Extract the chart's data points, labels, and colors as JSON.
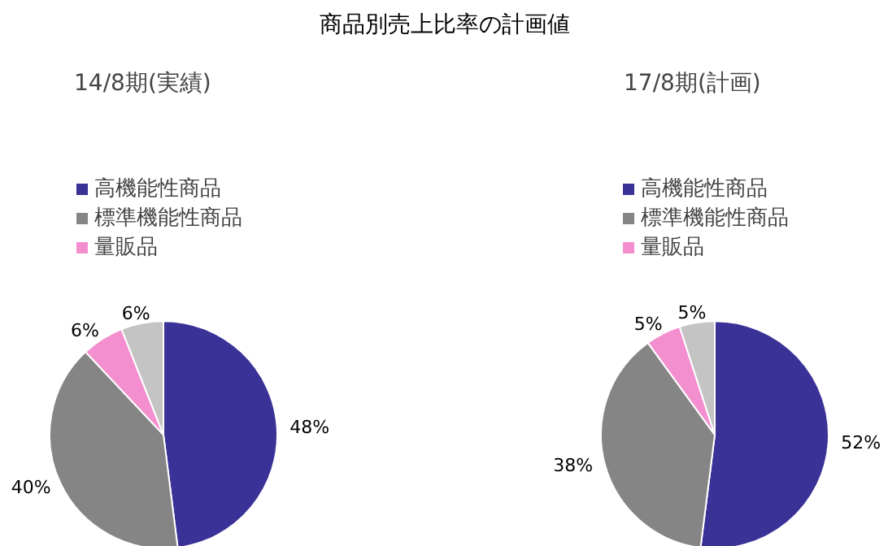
{
  "chart_data": [
    {
      "type": "pie",
      "title": "商品別売上比率の計画値",
      "subtitle": "14/8期(実績)",
      "categories": [
        "高機能性商品",
        "標準機能性商品",
        "量販品",
        null
      ],
      "values": [
        48,
        40,
        6,
        6
      ],
      "colors": [
        "#3a3296",
        "#858585",
        "#f48fcf",
        "#c4c4c4"
      ],
      "value_labels": [
        "48%",
        "40%",
        "6%",
        "6%"
      ],
      "legend": "top left"
    },
    {
      "type": "pie",
      "subtitle": "17/8期(計画)",
      "categories": [
        "高機能性商品",
        "標準機能性商品",
        "量販品",
        null
      ],
      "values": [
        52,
        38,
        5,
        5
      ],
      "colors": [
        "#3a3296",
        "#858585",
        "#f48fcf",
        "#c4c4c4"
      ],
      "value_labels": [
        "52%",
        "38%",
        "5%",
        "5%"
      ],
      "legend": "top left"
    }
  ]
}
